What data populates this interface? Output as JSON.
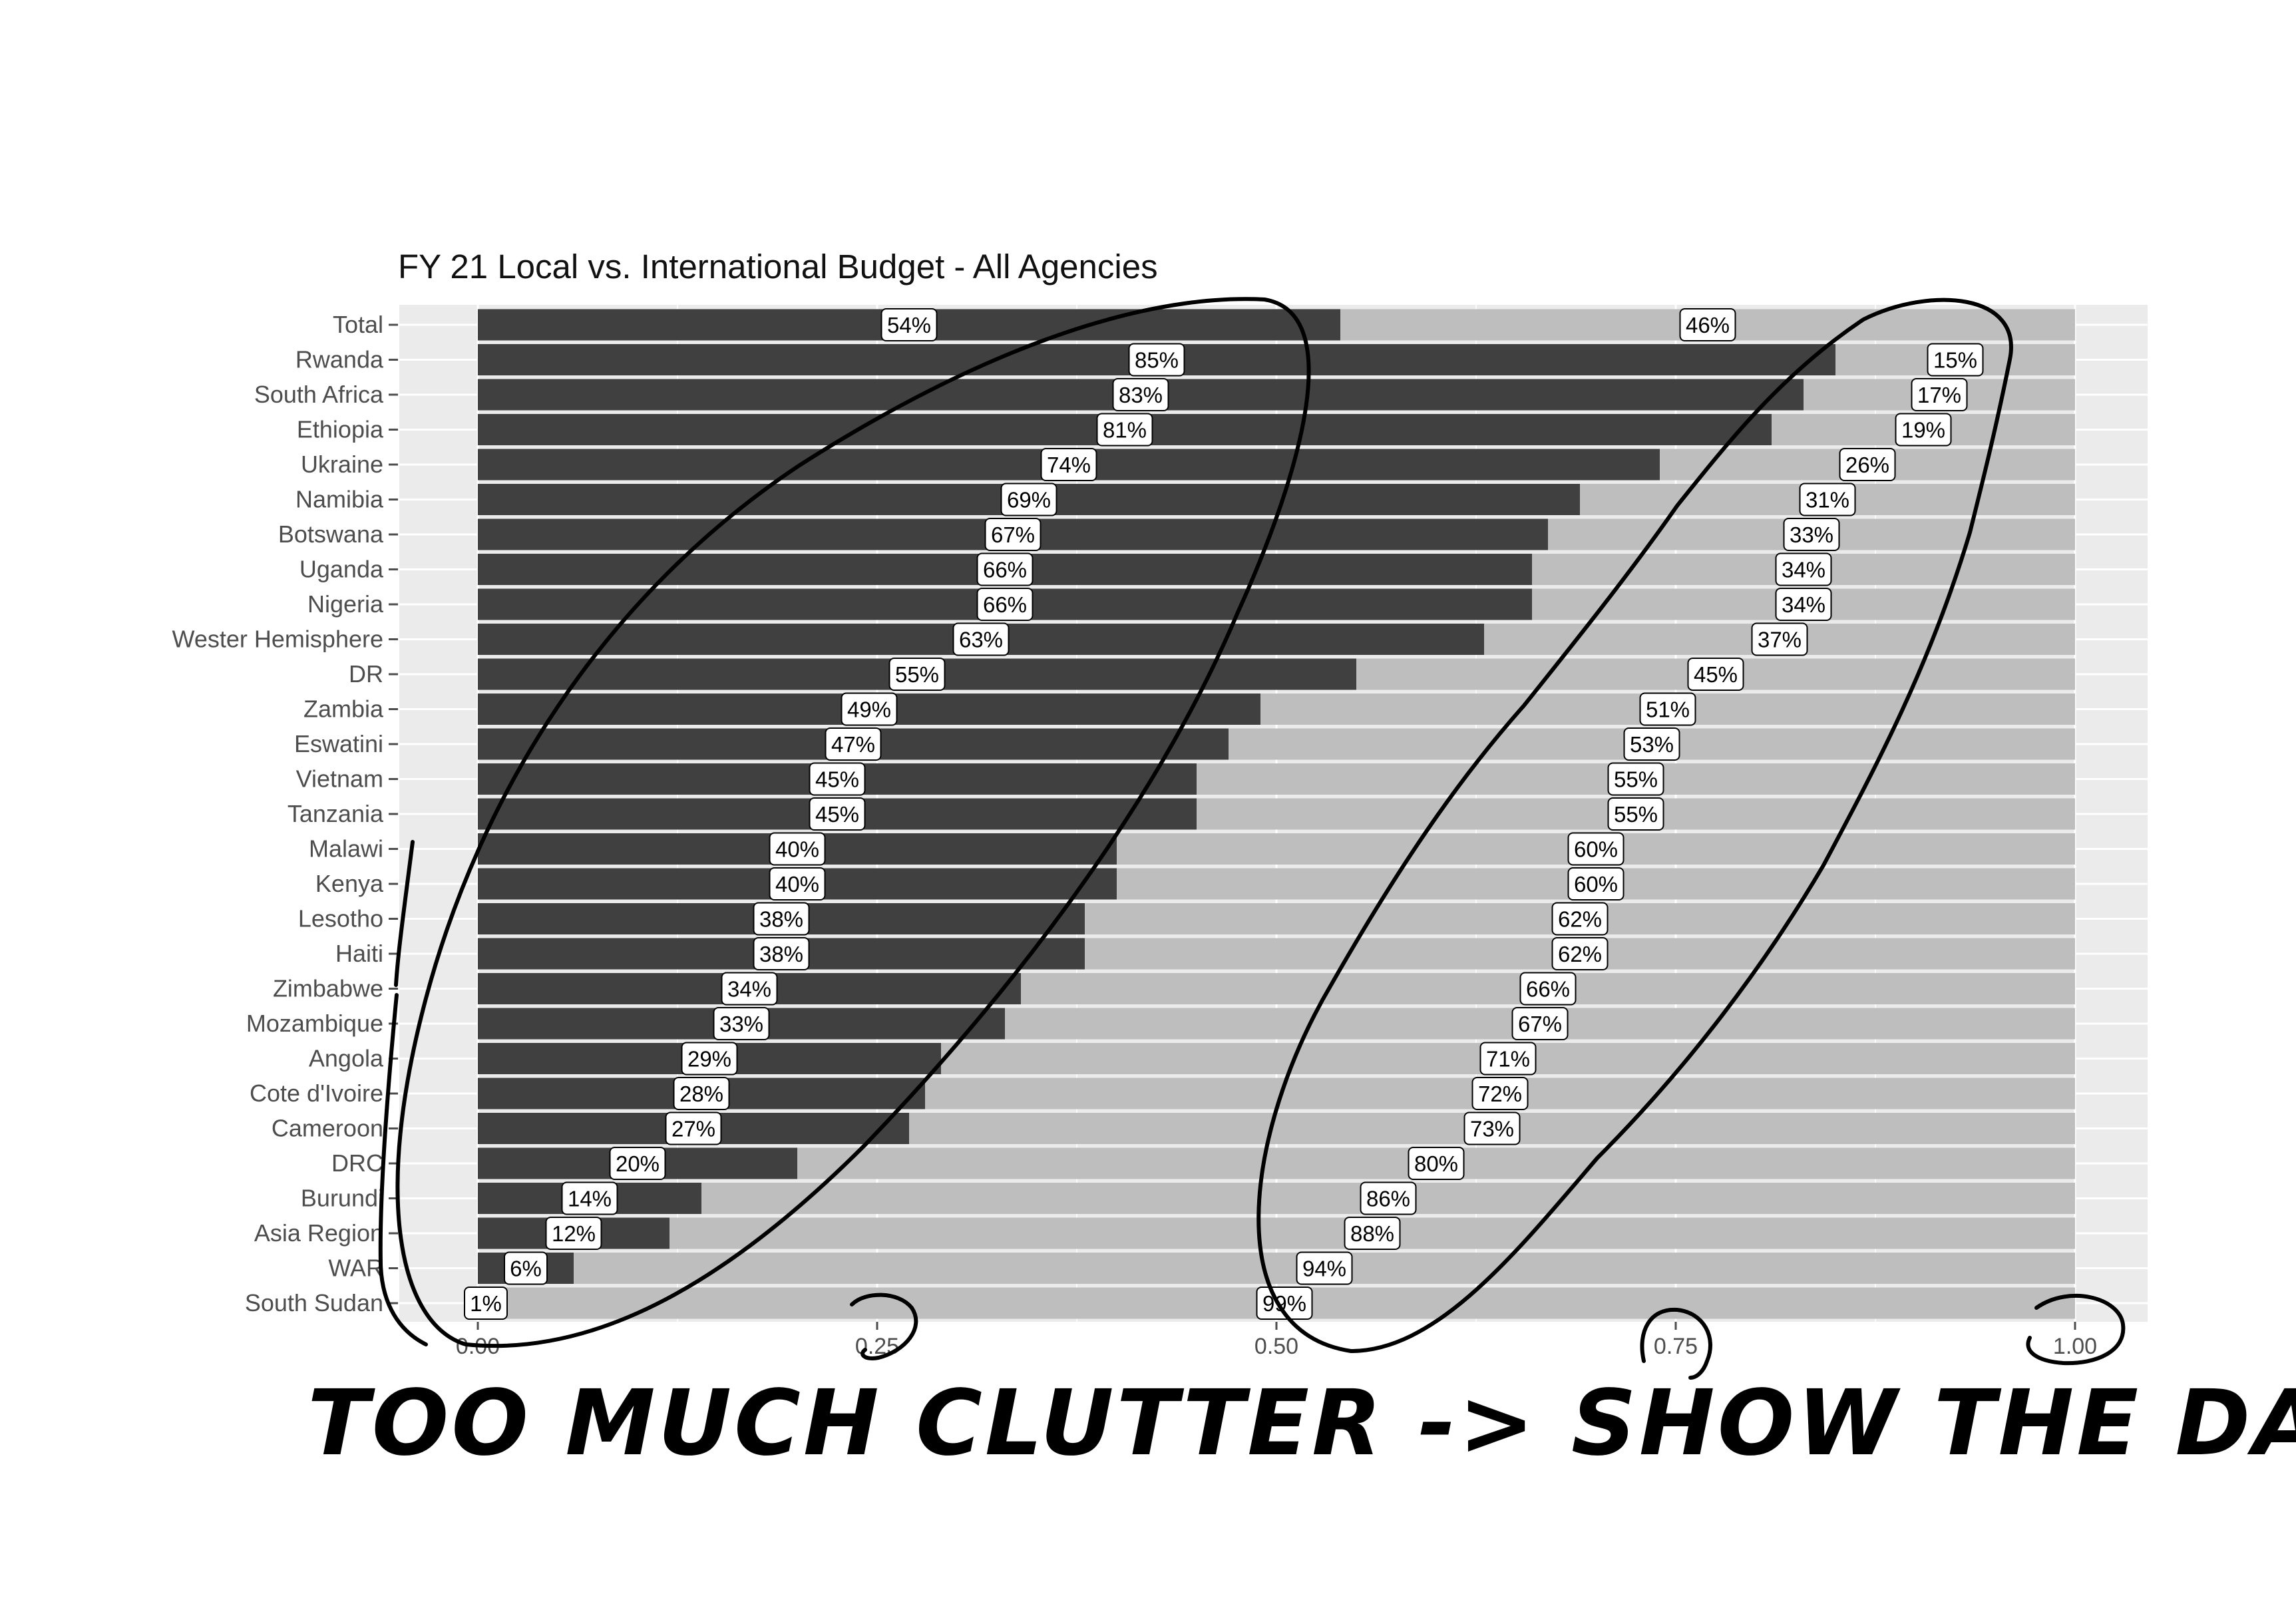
{
  "chart_data": {
    "type": "bar",
    "orientation": "horizontal",
    "stacked": true,
    "title": "FY 21 Local vs. International Budget - All Agencies",
    "xlim": [
      0,
      1
    ],
    "x_ticks": [
      "0.00",
      "0.25",
      "0.50",
      "0.75",
      "1.00"
    ],
    "x_tick_values": [
      0,
      0.25,
      0.5,
      0.75,
      1.0
    ],
    "grid": true,
    "legend": "none",
    "categories": [
      "Total",
      "Rwanda",
      "South Africa",
      "Ethiopia",
      "Ukraine",
      "Namibia",
      "Botswana",
      "Uganda",
      "Nigeria",
      "Wester Hemisphere",
      "DR",
      "Zambia",
      "Eswatini",
      "Vietnam",
      "Tanzania",
      "Malawi",
      "Kenya",
      "Lesotho",
      "Haiti",
      "Zimbabwe",
      "Mozambique",
      "Angola",
      "Cote d'Ivoire",
      "Cameroon",
      "DRC",
      "Burundi",
      "Asia Region",
      "WAR",
      "South Sudan"
    ],
    "series": [
      {
        "values": [
          0.54,
          0.85,
          0.83,
          0.81,
          0.74,
          0.69,
          0.67,
          0.66,
          0.66,
          0.63,
          0.55,
          0.49,
          0.47,
          0.45,
          0.45,
          0.4,
          0.4,
          0.38,
          0.38,
          0.34,
          0.33,
          0.29,
          0.28,
          0.27,
          0.2,
          0.14,
          0.12,
          0.06,
          0.01
        ],
        "labels": [
          "54%",
          "85%",
          "83%",
          "81%",
          "74%",
          "69%",
          "67%",
          "66%",
          "66%",
          "63%",
          "55%",
          "49%",
          "47%",
          "45%",
          "45%",
          "40%",
          "40%",
          "38%",
          "38%",
          "34%",
          "33%",
          "29%",
          "28%",
          "27%",
          "20%",
          "14%",
          "12%",
          "6%",
          "1%"
        ]
      },
      {
        "values": [
          0.46,
          0.15,
          0.17,
          0.19,
          0.26,
          0.31,
          0.33,
          0.34,
          0.34,
          0.37,
          0.45,
          0.51,
          0.53,
          0.55,
          0.55,
          0.6,
          0.6,
          0.62,
          0.62,
          0.66,
          0.67,
          0.71,
          0.72,
          0.73,
          0.8,
          0.86,
          0.88,
          0.94,
          0.99
        ],
        "labels": [
          "46%",
          "15%",
          "17%",
          "19%",
          "26%",
          "31%",
          "33%",
          "34%",
          "34%",
          "37%",
          "45%",
          "51%",
          "53%",
          "55%",
          "55%",
          "60%",
          "60%",
          "62%",
          "62%",
          "66%",
          "67%",
          "71%",
          "72%",
          "73%",
          "80%",
          "86%",
          "88%",
          "94%",
          "99%"
        ]
      }
    ]
  },
  "colors": {
    "panel_bg": "#ebebeb",
    "series_1": "#404040",
    "series_2": "#bebebe",
    "annotation": "#000000"
  },
  "annotation": {
    "caption": "TOO MUCH CLUTTER -> SHOW THE DATA!"
  }
}
